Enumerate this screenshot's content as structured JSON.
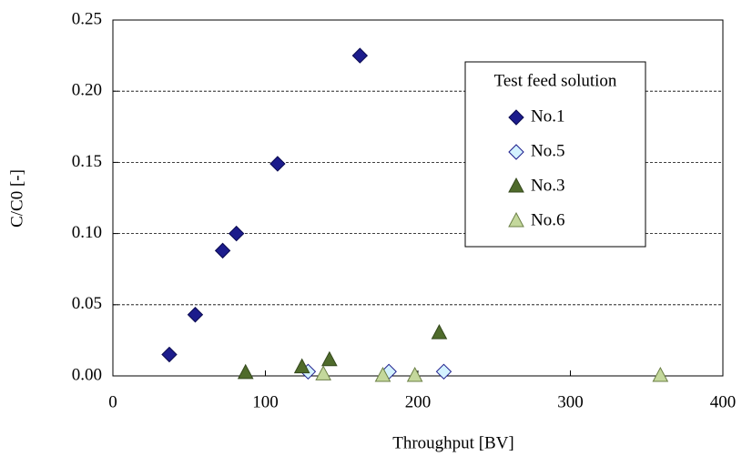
{
  "chart_data": {
    "type": "scatter",
    "xlabel": "Throughput [BV]",
    "ylabel": "C/C0 [-]",
    "legend_title": "Test feed solution",
    "legend_position": "upper right",
    "xlim": [
      0,
      400
    ],
    "xticks": [
      0,
      100,
      200,
      300,
      400
    ],
    "ylim": [
      0,
      0.25
    ],
    "yticks": [
      {
        "value": 0,
        "label": "0.00"
      },
      {
        "value": 0.05,
        "label": "0.05"
      },
      {
        "value": 0.1,
        "label": "0.10"
      },
      {
        "value": 0.15,
        "label": "0.15"
      },
      {
        "value": 0.2,
        "label": "0.20"
      },
      {
        "value": 0.25,
        "label": "0.25"
      }
    ],
    "grid": true,
    "series": [
      {
        "name": "No.1",
        "marker": "diamond",
        "color": "#1c1c8c",
        "edgecolor": "#0a0a50",
        "x": [
          37,
          54,
          72,
          81,
          108,
          162
        ],
        "values": [
          0.015,
          0.043,
          0.088,
          0.1,
          0.149,
          0.225
        ]
      },
      {
        "name": "No.5",
        "marker": "diamond",
        "color": "#d4f2ff",
        "edgecolor": "#1c1c8c",
        "x": [
          128,
          181,
          217
        ],
        "values": [
          0.003,
          0.003,
          0.003
        ]
      },
      {
        "name": "No.3",
        "marker": "triangle",
        "color": "#4f6b2b",
        "edgecolor": "#34481c",
        "x": [
          87,
          124,
          142,
          214
        ],
        "values": [
          0.002,
          0.006,
          0.011,
          0.03
        ]
      },
      {
        "name": "No.6",
        "marker": "triangle",
        "color": "#c4d89c",
        "edgecolor": "#6b7f45",
        "x": [
          138,
          177,
          198,
          359
        ],
        "values": [
          0.001,
          0.0,
          0.0,
          0.0
        ]
      }
    ]
  }
}
